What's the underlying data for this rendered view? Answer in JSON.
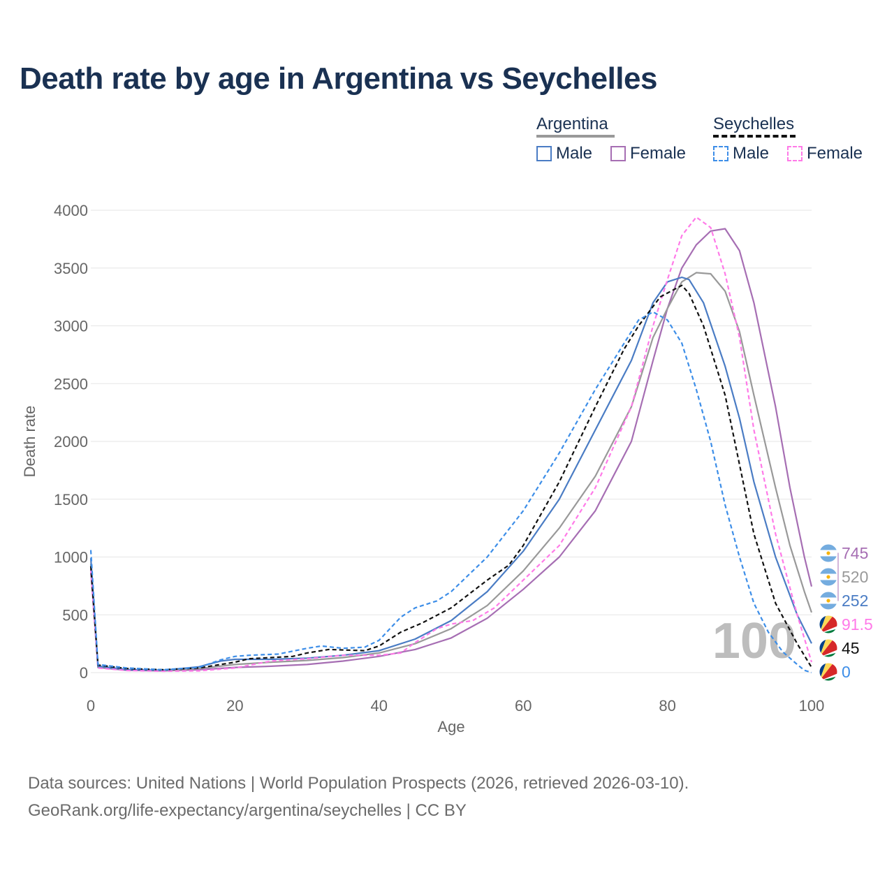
{
  "title": "Death rate by age in Argentina vs Seychelles",
  "legend": {
    "groups": [
      {
        "name": "Argentina",
        "line_color": "#999999",
        "dashed": false
      },
      {
        "name": "Seychelles",
        "line_color": "#111111",
        "dashed": true
      }
    ],
    "items": [
      {
        "label": "Male",
        "color": "#4a7cc4",
        "dashed": false
      },
      {
        "label": "Female",
        "color": "#a66eb3",
        "dashed": false
      },
      {
        "label": "Male",
        "color": "#3d8ee8",
        "dashed": true
      },
      {
        "label": "Female",
        "color": "#ff7ae8",
        "dashed": true
      }
    ]
  },
  "chart_data": {
    "type": "line",
    "title": "Death rate by age in Argentina vs Seychelles",
    "xlabel": "Age",
    "ylabel": "Death rate",
    "xlim": [
      0,
      100
    ],
    "ylim": [
      0,
      4000
    ],
    "xticks": [
      0,
      20,
      40,
      60,
      80,
      100
    ],
    "yticks": [
      0,
      500,
      1000,
      1500,
      2000,
      2500,
      3000,
      3500,
      4000
    ],
    "grid": true,
    "watermark": "100",
    "series": [
      {
        "name": "Argentina Female",
        "country": "Argentina",
        "sex": "Female",
        "color": "#a66eb3",
        "dashed": false,
        "end_label": "745",
        "points": [
          [
            0,
            890
          ],
          [
            1,
            45
          ],
          [
            5,
            20
          ],
          [
            10,
            15
          ],
          [
            15,
            25
          ],
          [
            20,
            45
          ],
          [
            25,
            55
          ],
          [
            30,
            70
          ],
          [
            35,
            100
          ],
          [
            40,
            140
          ],
          [
            45,
            200
          ],
          [
            50,
            300
          ],
          [
            55,
            470
          ],
          [
            60,
            720
          ],
          [
            65,
            1000
          ],
          [
            70,
            1400
          ],
          [
            75,
            2000
          ],
          [
            78,
            2700
          ],
          [
            80,
            3150
          ],
          [
            82,
            3500
          ],
          [
            84,
            3700
          ],
          [
            86,
            3820
          ],
          [
            88,
            3840
          ],
          [
            90,
            3650
          ],
          [
            92,
            3200
          ],
          [
            95,
            2300
          ],
          [
            97,
            1600
          ],
          [
            99,
            1000
          ],
          [
            100,
            745
          ]
        ]
      },
      {
        "name": "Argentina Total",
        "country": "Argentina",
        "sex": "Total",
        "color": "#999999",
        "dashed": false,
        "end_label": "520",
        "points": [
          [
            0,
            940
          ],
          [
            1,
            50
          ],
          [
            5,
            25
          ],
          [
            10,
            18
          ],
          [
            15,
            35
          ],
          [
            20,
            70
          ],
          [
            25,
            90
          ],
          [
            30,
            105
          ],
          [
            35,
            130
          ],
          [
            40,
            170
          ],
          [
            45,
            250
          ],
          [
            50,
            380
          ],
          [
            55,
            580
          ],
          [
            60,
            880
          ],
          [
            65,
            1250
          ],
          [
            70,
            1700
          ],
          [
            75,
            2300
          ],
          [
            78,
            2900
          ],
          [
            80,
            3150
          ],
          [
            82,
            3380
          ],
          [
            84,
            3460
          ],
          [
            86,
            3450
          ],
          [
            88,
            3300
          ],
          [
            90,
            2950
          ],
          [
            92,
            2400
          ],
          [
            95,
            1600
          ],
          [
            97,
            1100
          ],
          [
            99,
            700
          ],
          [
            100,
            520
          ]
        ]
      },
      {
        "name": "Argentina Male",
        "country": "Argentina",
        "sex": "Male",
        "color": "#4a7cc4",
        "dashed": false,
        "end_label": "252",
        "points": [
          [
            0,
            990
          ],
          [
            1,
            55
          ],
          [
            5,
            25
          ],
          [
            10,
            20
          ],
          [
            15,
            50
          ],
          [
            18,
            100
          ],
          [
            20,
            115
          ],
          [
            25,
            115
          ],
          [
            30,
            125
          ],
          [
            35,
            150
          ],
          [
            40,
            190
          ],
          [
            45,
            290
          ],
          [
            50,
            450
          ],
          [
            55,
            700
          ],
          [
            60,
            1050
          ],
          [
            65,
            1500
          ],
          [
            70,
            2100
          ],
          [
            75,
            2700
          ],
          [
            78,
            3200
          ],
          [
            80,
            3380
          ],
          [
            82,
            3420
          ],
          [
            83,
            3400
          ],
          [
            85,
            3200
          ],
          [
            88,
            2650
          ],
          [
            90,
            2200
          ],
          [
            92,
            1650
          ],
          [
            95,
            1000
          ],
          [
            98,
            500
          ],
          [
            100,
            252
          ]
        ]
      },
      {
        "name": "Seychelles Female",
        "country": "Seychelles",
        "sex": "Female",
        "color": "#ff7ae8",
        "dashed": true,
        "end_label": "91.5",
        "points": [
          [
            0,
            880
          ],
          [
            1,
            40
          ],
          [
            5,
            18
          ],
          [
            10,
            12
          ],
          [
            15,
            15
          ],
          [
            20,
            40
          ],
          [
            25,
            100
          ],
          [
            30,
            120
          ],
          [
            35,
            150
          ],
          [
            40,
            150
          ],
          [
            43,
            170
          ],
          [
            45,
            260
          ],
          [
            48,
            380
          ],
          [
            50,
            420
          ],
          [
            53,
            450
          ],
          [
            56,
            560
          ],
          [
            60,
            800
          ],
          [
            65,
            1100
          ],
          [
            70,
            1600
          ],
          [
            75,
            2300
          ],
          [
            78,
            3000
          ],
          [
            80,
            3400
          ],
          [
            82,
            3780
          ],
          [
            84,
            3940
          ],
          [
            86,
            3850
          ],
          [
            88,
            3450
          ],
          [
            90,
            2900
          ],
          [
            92,
            2100
          ],
          [
            95,
            1200
          ],
          [
            98,
            500
          ],
          [
            100,
            91.5
          ]
        ]
      },
      {
        "name": "Seychelles Total",
        "country": "Seychelles",
        "sex": "Total",
        "color": "#111111",
        "dashed": true,
        "end_label": "45",
        "points": [
          [
            0,
            920
          ],
          [
            1,
            65
          ],
          [
            5,
            35
          ],
          [
            10,
            25
          ],
          [
            15,
            40
          ],
          [
            20,
            90
          ],
          [
            22,
            120
          ],
          [
            25,
            130
          ],
          [
            28,
            140
          ],
          [
            30,
            170
          ],
          [
            33,
            200
          ],
          [
            38,
            190
          ],
          [
            40,
            230
          ],
          [
            43,
            350
          ],
          [
            46,
            430
          ],
          [
            50,
            560
          ],
          [
            55,
            800
          ],
          [
            58,
            930
          ],
          [
            60,
            1100
          ],
          [
            65,
            1650
          ],
          [
            70,
            2300
          ],
          [
            74,
            2800
          ],
          [
            76,
            3000
          ],
          [
            79,
            3250
          ],
          [
            82,
            3350
          ],
          [
            83,
            3280
          ],
          [
            85,
            3000
          ],
          [
            88,
            2400
          ],
          [
            90,
            1800
          ],
          [
            92,
            1200
          ],
          [
            95,
            600
          ],
          [
            98,
            250
          ],
          [
            100,
            45
          ]
        ]
      },
      {
        "name": "Seychelles Male",
        "country": "Seychelles",
        "sex": "Male",
        "color": "#3d8ee8",
        "dashed": true,
        "end_label": "0",
        "points": [
          [
            0,
            1060
          ],
          [
            1,
            70
          ],
          [
            5,
            40
          ],
          [
            10,
            25
          ],
          [
            15,
            45
          ],
          [
            18,
            110
          ],
          [
            20,
            140
          ],
          [
            22,
            150
          ],
          [
            26,
            160
          ],
          [
            30,
            210
          ],
          [
            32,
            230
          ],
          [
            35,
            210
          ],
          [
            38,
            220
          ],
          [
            40,
            280
          ],
          [
            43,
            480
          ],
          [
            45,
            560
          ],
          [
            48,
            620
          ],
          [
            50,
            700
          ],
          [
            55,
            1000
          ],
          [
            60,
            1400
          ],
          [
            65,
            1900
          ],
          [
            70,
            2450
          ],
          [
            74,
            2850
          ],
          [
            76,
            3050
          ],
          [
            78,
            3120
          ],
          [
            80,
            3050
          ],
          [
            82,
            2850
          ],
          [
            84,
            2450
          ],
          [
            86,
            2000
          ],
          [
            88,
            1450
          ],
          [
            90,
            1000
          ],
          [
            92,
            600
          ],
          [
            94,
            350
          ],
          [
            96,
            180
          ],
          [
            98,
            70
          ],
          [
            99,
            20
          ],
          [
            100,
            0
          ]
        ]
      }
    ]
  },
  "footer": {
    "line1": "Data sources: United Nations | World Population Prospects (2026, retrieved 2026-03-10).",
    "line2": "GeoRank.org/life-expectancy/argentina/seychelles | CC BY"
  }
}
